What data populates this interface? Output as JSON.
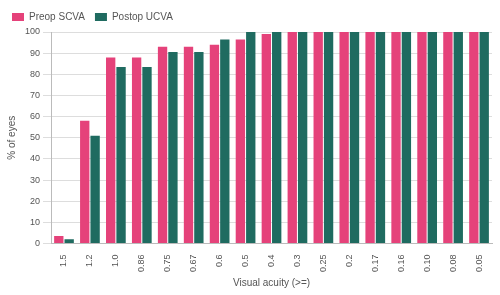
{
  "chart_data": {
    "type": "bar",
    "x_label": "Visual acuity (>=)",
    "y_label": "% of eyes",
    "categories": [
      "1.5",
      "1.2",
      "1.0",
      "0.86",
      "0.75",
      "0.67",
      "0.6",
      "0.5",
      "0.4",
      "0.3",
      "0.25",
      "0.2",
      "0.17",
      "0.16",
      "0.10",
      "0.08",
      "0.05"
    ],
    "series": [
      {
        "name": "Preop SCVA",
        "color": "#e5427a",
        "values": [
          3.5,
          58,
          88,
          88,
          93,
          93,
          94,
          96.5,
          99,
          100,
          100,
          100,
          100,
          100,
          100,
          100,
          100
        ]
      },
      {
        "name": "Postop UCVA",
        "color": "#1f6b60",
        "values": [
          2,
          51,
          83.5,
          83.5,
          90.5,
          90.5,
          96.5,
          100,
          100,
          100,
          100,
          100,
          100,
          100,
          100,
          100,
          100
        ]
      }
    ],
    "ylim": [
      0,
      100
    ],
    "yticks": [
      0,
      10,
      20,
      30,
      40,
      50,
      60,
      70,
      80,
      90,
      100
    ],
    "grid": true,
    "legend": "top-left"
  }
}
